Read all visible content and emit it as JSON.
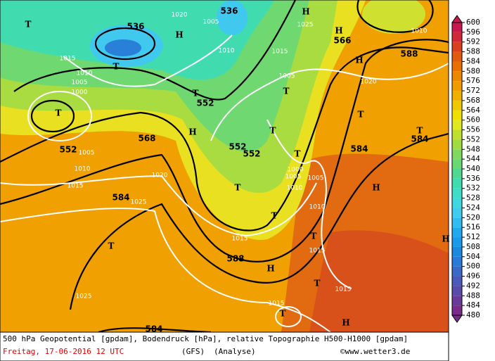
{
  "map": {
    "geopotential_labels": [
      "536",
      "536",
      "552",
      "552",
      "568",
      "552",
      "552",
      "584",
      "588",
      "584",
      "584",
      "588",
      "566",
      "584"
    ],
    "pressure_labels": [
      "1020",
      "1025",
      "1010",
      "1015",
      "1010",
      "1005",
      "1000",
      "1015",
      "1005",
      "1020",
      "1010",
      "1005",
      "1010",
      "1015",
      "1020",
      "1025",
      "1015",
      "1010",
      "1015",
      "1015",
      "1015",
      "1025",
      "1005",
      "1000",
      "1005",
      "1010",
      "1005"
    ],
    "pressure_systems": [
      "T",
      "H",
      "T",
      "T",
      "T",
      "H",
      "H",
      "H",
      "H",
      "T",
      "T",
      "T",
      "T",
      "T",
      "H",
      "T",
      "T",
      "T",
      "H",
      "T",
      "T",
      "H",
      "T",
      "H"
    ]
  },
  "colorbar": {
    "ticks": [
      480,
      484,
      488,
      492,
      496,
      500,
      504,
      508,
      512,
      516,
      520,
      524,
      528,
      532,
      536,
      540,
      544,
      548,
      552,
      556,
      560,
      564,
      568,
      572,
      576,
      580,
      584,
      588,
      592,
      596,
      600
    ],
    "colors": [
      "#7a2a8a",
      "#6a3a9a",
      "#5a4aaa",
      "#4a5ab8",
      "#3a6ac8",
      "#2a7ad8",
      "#1a8ae0",
      "#1a9ae8",
      "#20aaee",
      "#30bcf0",
      "#40ccee",
      "#40d8e0",
      "#40dcc8",
      "#40dcb0",
      "#50d890",
      "#68d870",
      "#80d860",
      "#a0dc40",
      "#c0e030",
      "#e0e820",
      "#f0e000",
      "#f0c800",
      "#f0b000",
      "#f09c00",
      "#ec8800",
      "#e87000",
      "#e05a10",
      "#d84020",
      "#d02838",
      "#c81850"
    ]
  },
  "footer": {
    "description": "500 hPa Geopotential [gpdam], Bodendruck [hPa], relative Topographie H500-H1000 [gpdam]",
    "date": "Freitag, 17-06-2016  12 UTC",
    "model": "(GFS)",
    "run": "(Analyse)",
    "source": "©www.wetter3.de"
  }
}
